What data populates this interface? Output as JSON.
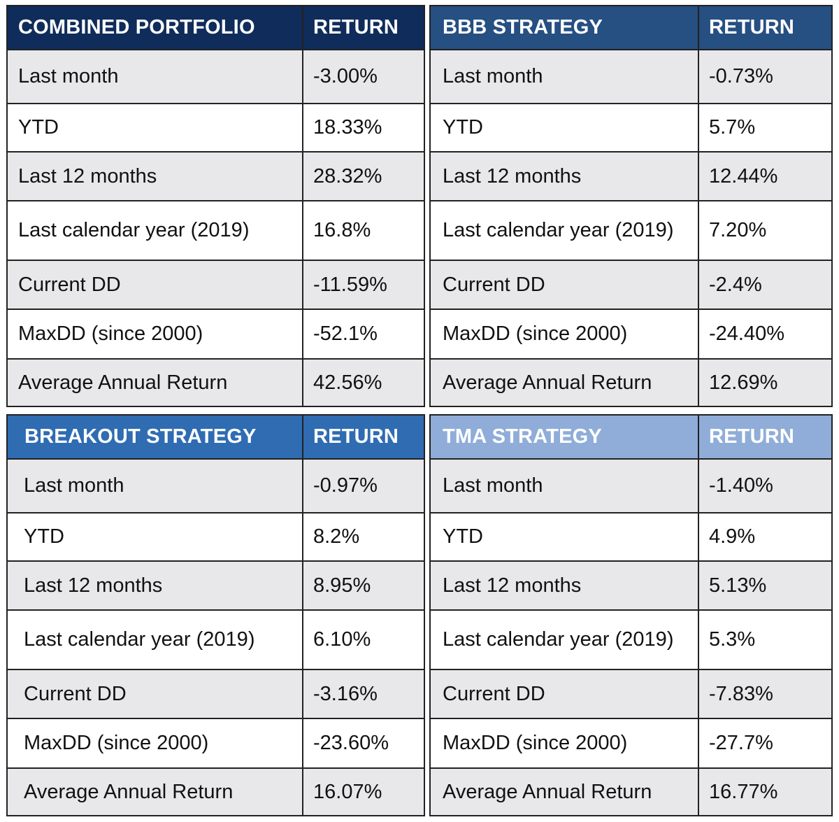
{
  "colors": {
    "combined_header": "#0f2c5a",
    "bbb_header": "#264f82",
    "breakout_header": "#2f6cb2",
    "tma_header": "#8fadd8",
    "shaded_row": "#e8e7ea",
    "border": "#222222"
  },
  "tables": [
    {
      "title": "COMBINED PORTFOLIO",
      "return_header": "RETURN",
      "rows": [
        {
          "label": "Last month",
          "value": "-3.00%"
        },
        {
          "label": "YTD",
          "value": "18.33%"
        },
        {
          "label": "Last 12 months",
          "value": "28.32%"
        },
        {
          "label": "Last calendar year (2019)",
          "value": "16.8%"
        },
        {
          "label": "Current DD",
          "value": "-11.59%"
        },
        {
          "label": "MaxDD (since 2000)",
          "value": "-52.1%"
        },
        {
          "label": "Average Annual Return",
          "value": "42.56%"
        }
      ]
    },
    {
      "title": "BBB STRATEGY",
      "return_header": "RETURN",
      "rows": [
        {
          "label": "Last month",
          "value": "-0.73%"
        },
        {
          "label": "YTD",
          "value": "5.7%"
        },
        {
          "label": "Last 12 months",
          "value": "12.44%"
        },
        {
          "label": "Last calendar year (2019)",
          "value": "7.20%"
        },
        {
          "label": "Current DD",
          "value": "-2.4%"
        },
        {
          "label": "MaxDD (since 2000)",
          "value": "-24.40%"
        },
        {
          "label": "Average Annual Return",
          "value": "12.69%"
        }
      ]
    },
    {
      "title": "BREAKOUT STRATEGY",
      "return_header": "RETURN",
      "rows": [
        {
          "label": "Last month",
          "value": "-0.97%"
        },
        {
          "label": "YTD",
          "value": "8.2%"
        },
        {
          "label": "Last 12 months",
          "value": "8.95%"
        },
        {
          "label": "Last calendar year (2019)",
          "value": "6.10%"
        },
        {
          "label": "Current DD",
          "value": "-3.16%"
        },
        {
          "label": "MaxDD (since 2000)",
          "value": "-23.60%"
        },
        {
          "label": "Average Annual Return",
          "value": "16.07%"
        }
      ]
    },
    {
      "title": "TMA STRATEGY",
      "return_header": "RETURN",
      "rows": [
        {
          "label": "Last month",
          "value": "-1.40%"
        },
        {
          "label": "YTD",
          "value": "4.9%"
        },
        {
          "label": "Last 12 months",
          "value": "5.13%"
        },
        {
          "label": "Last calendar year (2019)",
          "value": "5.3%"
        },
        {
          "label": "Current DD",
          "value": "-7.83%"
        },
        {
          "label": "MaxDD (since 2000)",
          "value": "-27.7%"
        },
        {
          "label": "Average Annual Return",
          "value": "16.77%"
        }
      ]
    }
  ]
}
